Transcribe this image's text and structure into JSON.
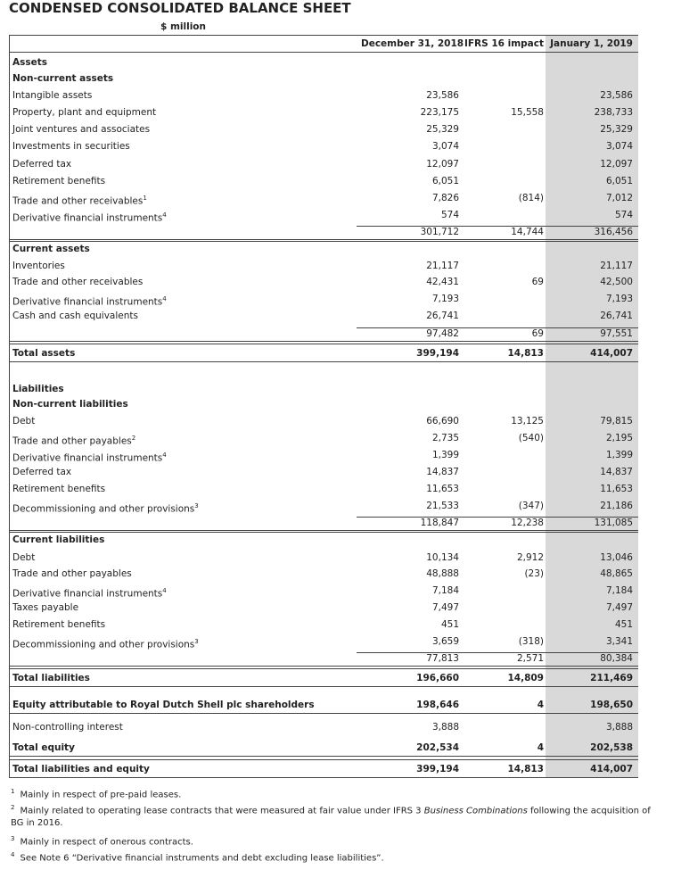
{
  "header": {
    "title": "CONDENSED CONSOLIDATED BALANCE SHEET",
    "unit": "$ million",
    "columns": [
      "December 31, 2018",
      "IFRS 16 impact",
      "January 1, 2019"
    ]
  },
  "table": {
    "rows": [
      {
        "label": "Assets",
        "cells": [
          null,
          null,
          null
        ]
      },
      {
        "label": "Non-current assets",
        "cells": [
          null,
          null,
          null
        ]
      },
      {
        "label": "Intangible assets",
        "cells": [
          "23,586",
          null,
          "23,586"
        ]
      },
      {
        "label": "Property, plant and equipment",
        "cells": [
          "223,175",
          "15,558",
          "238,733"
        ]
      },
      {
        "label": "Joint ventures and associates",
        "cells": [
          "25,329",
          null,
          "25,329"
        ]
      },
      {
        "label": "Investments in securities",
        "cells": [
          "3,074",
          null,
          "3,074"
        ]
      },
      {
        "label": "Deferred tax",
        "cells": [
          "12,097",
          null,
          "12,097"
        ]
      },
      {
        "label": "Retirement benefits",
        "cells": [
          "6,051",
          null,
          "6,051"
        ]
      },
      {
        "label": "Trade and other receivables",
        "note": "1",
        "cells": [
          "7,826",
          "(814)",
          "7,012"
        ]
      },
      {
        "label": "Derivative financial instruments",
        "note": "4",
        "cells": [
          "574",
          null,
          "574"
        ]
      },
      {
        "cells": [
          "301,712",
          "14,744",
          "316,456"
        ]
      },
      {
        "label": "Current assets",
        "cells": [
          null,
          null,
          null
        ]
      },
      {
        "label": "Inventories",
        "cells": [
          "21,117",
          null,
          "21,117"
        ]
      },
      {
        "label": "Trade and other receivables",
        "cells": [
          "42,431",
          "69",
          "42,500"
        ]
      },
      {
        "label": "Derivative financial instruments",
        "note": "4",
        "cells": [
          "7,193",
          null,
          "7,193"
        ]
      },
      {
        "label": "Cash and cash equivalents",
        "cells": [
          "26,741",
          null,
          "26,741"
        ]
      },
      {
        "cells": [
          "97,482",
          "69",
          "97,551"
        ]
      },
      {
        "label": "Total assets",
        "cells": [
          "399,194",
          "14,813",
          "414,007"
        ]
      },
      {
        "label": "Liabilities",
        "cells": [
          null,
          null,
          null
        ]
      },
      {
        "label": "Non-current liabilities",
        "cells": [
          null,
          null,
          null
        ]
      },
      {
        "label": "Debt",
        "cells": [
          "66,690",
          "13,125",
          "79,815"
        ]
      },
      {
        "label": "Trade and other payables",
        "note": "2",
        "cells": [
          "2,735",
          "(540)",
          "2,195"
        ]
      },
      {
        "label": "Derivative financial instruments",
        "note": "4",
        "cells": [
          "1,399",
          null,
          "1,399"
        ]
      },
      {
        "label": "Deferred tax",
        "cells": [
          "14,837",
          null,
          "14,837"
        ]
      },
      {
        "label": "Retirement benefits",
        "cells": [
          "11,653",
          null,
          "11,653"
        ]
      },
      {
        "label": "Decommissioning and other provisions",
        "note": "3",
        "cells": [
          "21,533",
          "(347)",
          "21,186"
        ]
      },
      {
        "cells": [
          "118,847",
          "12,238",
          "131,085"
        ]
      },
      {
        "label": "Current liabilities",
        "cells": [
          null,
          null,
          null
        ]
      },
      {
        "label": "Debt",
        "cells": [
          "10,134",
          "2,912",
          "13,046"
        ]
      },
      {
        "label": "Trade and other payables",
        "cells": [
          "48,888",
          "(23)",
          "48,865"
        ]
      },
      {
        "label": "Derivative financial instruments",
        "note": "4",
        "cells": [
          "7,184",
          null,
          "7,184"
        ]
      },
      {
        "label": "Taxes payable",
        "cells": [
          "7,497",
          null,
          "7,497"
        ]
      },
      {
        "label": "Retirement benefits",
        "cells": [
          "451",
          null,
          "451"
        ]
      },
      {
        "label": "Decommissioning and other provisions",
        "note": "3",
        "cells": [
          "3,659",
          "(318)",
          "3,341"
        ]
      },
      {
        "cells": [
          "77,813",
          "2,571",
          "80,384"
        ]
      },
      {
        "label": "Total liabilities",
        "cells": [
          "196,660",
          "14,809",
          "211,469"
        ]
      },
      {
        "label": "Equity attributable to Royal Dutch Shell plc shareholders",
        "cells": [
          "198,646",
          "4",
          "198,650"
        ]
      },
      {
        "label": "Non-controlling interest",
        "cells": [
          "3,888",
          null,
          "3,888"
        ]
      },
      {
        "label": "Total equity",
        "cells": [
          "202,534",
          "4",
          "202,538"
        ]
      },
      {
        "label": "Total liabilities and equity",
        "cells": [
          "399,194",
          "14,813",
          "414,007"
        ]
      }
    ]
  },
  "footnotes": [
    {
      "mark": "1",
      "parts": [
        "Mainly in respect of pre-paid leases."
      ]
    },
    {
      "mark": "2",
      "parts": [
        "Mainly related to operating lease contracts that were measured at fair value under IFRS 3 ",
        "Business Combinations",
        " following the acquisition of BG in 2016."
      ]
    },
    {
      "mark": "3",
      "parts": [
        "Mainly in respect of onerous contracts."
      ]
    },
    {
      "mark": "4",
      "parts": [
        "See Note 6 “Derivative financial instruments and debt excluding lease liabilities”."
      ]
    }
  ]
}
